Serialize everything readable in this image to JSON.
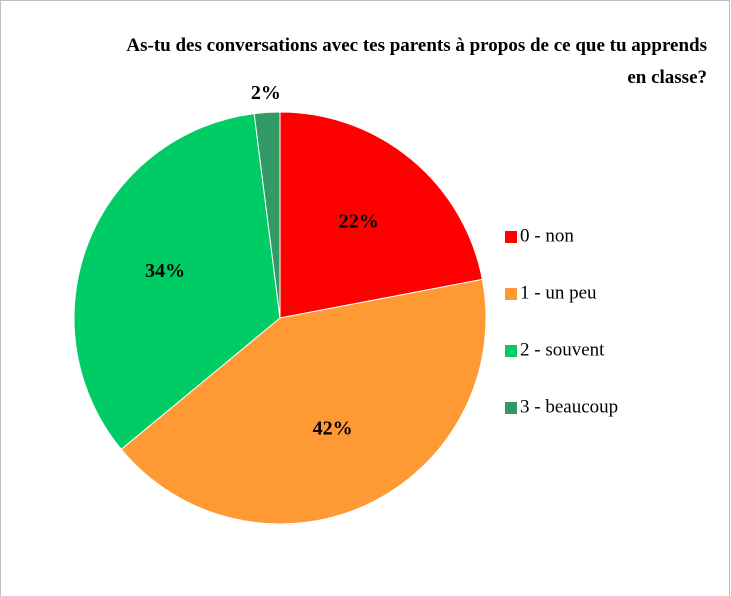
{
  "chart_data": {
    "type": "pie",
    "title": "As-tu des conversations avec tes parents à propos de ce que tu apprends en classe?",
    "categories": [
      "0 - non",
      "1 - un peu",
      "2 - souvent",
      "3 - beaucoup"
    ],
    "values": [
      22,
      42,
      34,
      2
    ],
    "value_labels": [
      "22%",
      "42%",
      "34%",
      "2%"
    ],
    "colors": [
      "#ff0000",
      "#ff9933",
      "#00cc66",
      "#339966"
    ],
    "legend": "right"
  }
}
